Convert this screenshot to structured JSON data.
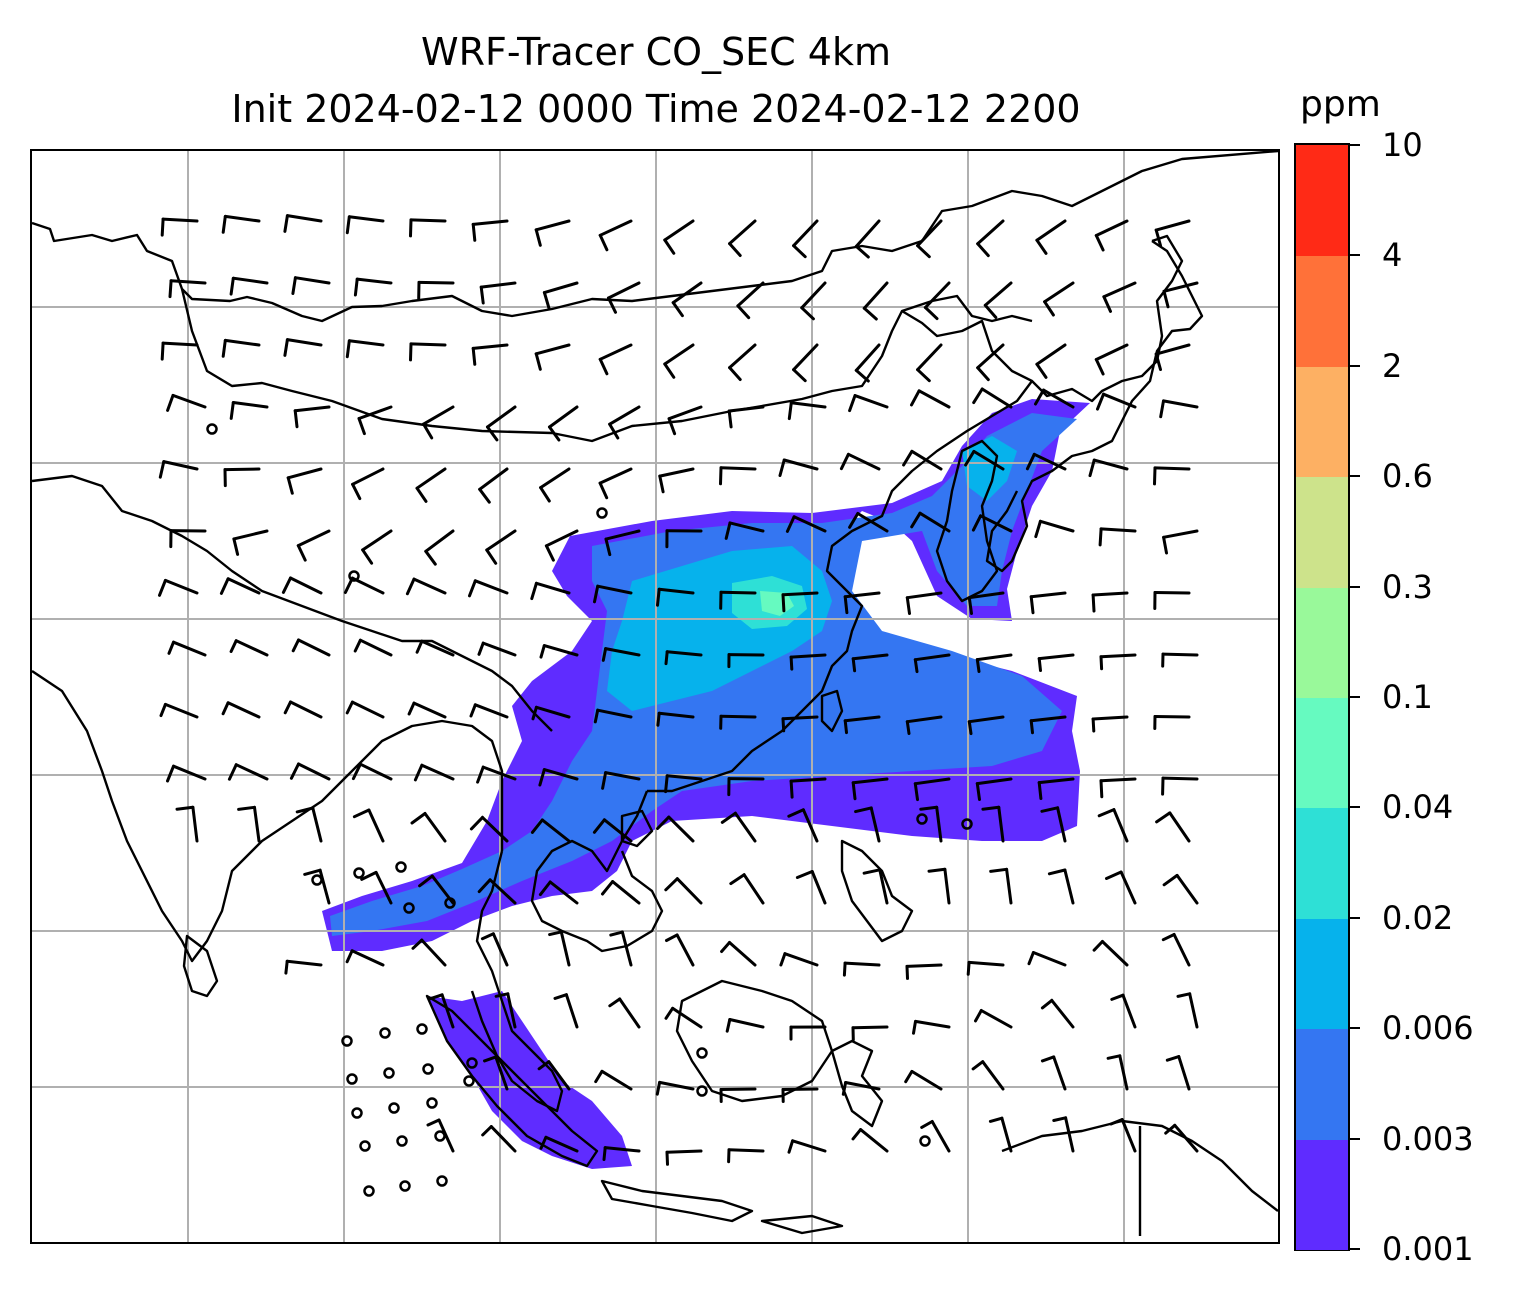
{
  "title": {
    "line1": "WRF-Tracer CO_SEC 4km",
    "line2": "Init 2024-02-12 0000 Time 2024-02-12 2200"
  },
  "colorbar": {
    "unit": "ppm",
    "levels": [
      "0.001",
      "0.003",
      "0.006",
      "0.02",
      "0.04",
      "0.1",
      "0.3",
      "0.6",
      "2",
      "4",
      "10"
    ],
    "colors": [
      "#5f2cff",
      "#3476f2",
      "#06b2ec",
      "#2ee0d6",
      "#66fac0",
      "#99f99a",
      "#cde38b",
      "#fdb063",
      "#ff7139",
      "#ff2a16"
    ]
  },
  "map": {
    "gridlines": true,
    "coastline_color": "#000000",
    "gridline_color": "#b0b0b0",
    "plume_colors": {
      "outer": "#5f2cff",
      "mid": "#3476f2",
      "core": "#06b2ec",
      "inner": "#2ee0d6",
      "peak": "#66fac0"
    }
  }
}
